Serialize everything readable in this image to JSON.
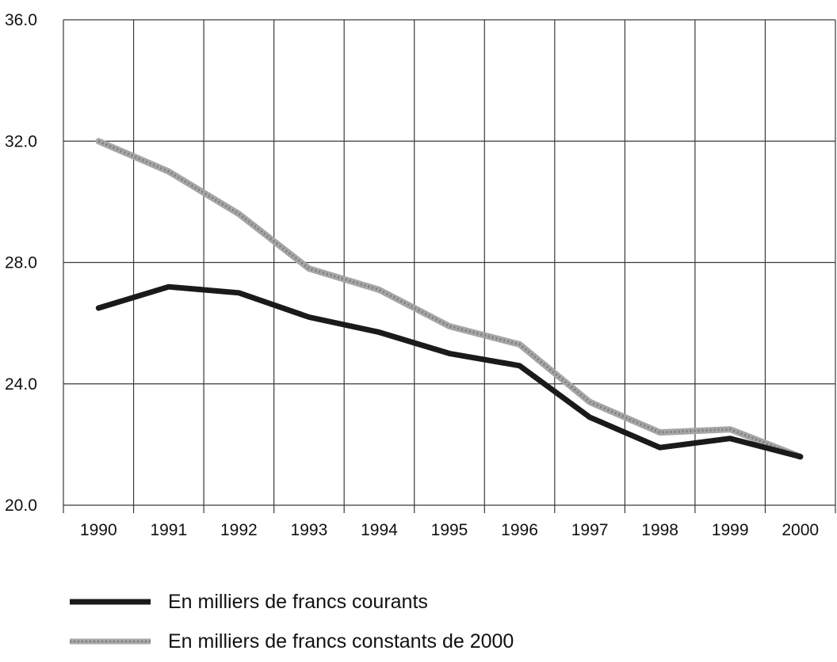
{
  "chart_data": {
    "type": "line",
    "title": "",
    "xlabel": "",
    "ylabel": "",
    "categories": [
      "1990",
      "1991",
      "1992",
      "1993",
      "1994",
      "1995",
      "1996",
      "1997",
      "1998",
      "1999",
      "2000"
    ],
    "ylim": [
      20.0,
      36.0
    ],
    "yticks": [
      "20.0",
      "24.0",
      "28.0",
      "32.0",
      "36.0"
    ],
    "grid": true,
    "legend_position": "bottom-left",
    "series": [
      {
        "name": "En milliers de francs courants",
        "color": "#1a1a1a",
        "values": [
          26.5,
          27.2,
          27.0,
          26.2,
          25.7,
          25.0,
          24.6,
          22.9,
          21.9,
          22.2,
          21.6
        ]
      },
      {
        "name": "En milliers de francs constants de 2000",
        "color": "#a6a6a6",
        "values": [
          32.0,
          31.0,
          29.6,
          27.8,
          27.1,
          25.9,
          25.3,
          23.4,
          22.4,
          22.5,
          21.6
        ]
      }
    ]
  }
}
